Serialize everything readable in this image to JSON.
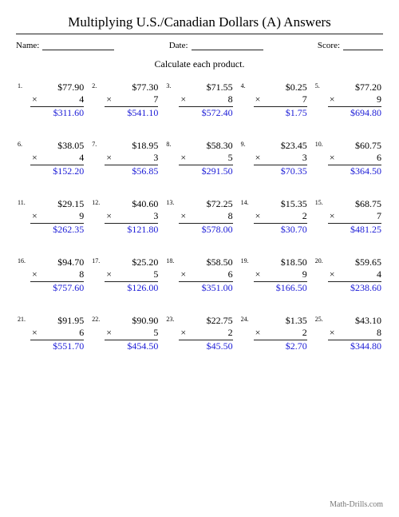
{
  "title": "Multiplying U.S./Canadian Dollars (A) Answers",
  "meta": {
    "name_label": "Name:",
    "date_label": "Date:",
    "score_label": "Score:"
  },
  "instruction": "Calculate each product.",
  "footer": "Math-Drills.com",
  "colors": {
    "answer": "#1a1ad6",
    "text": "#000000",
    "rule": "#222222",
    "footer": "#777777",
    "bg": "#ffffff"
  },
  "mult_symbol": "×",
  "problems": [
    {
      "n": "1.",
      "top": "$77.90",
      "by": "4",
      "ans": "$311.60"
    },
    {
      "n": "2.",
      "top": "$77.30",
      "by": "7",
      "ans": "$541.10"
    },
    {
      "n": "3.",
      "top": "$71.55",
      "by": "8",
      "ans": "$572.40"
    },
    {
      "n": "4.",
      "top": "$0.25",
      "by": "7",
      "ans": "$1.75"
    },
    {
      "n": "5.",
      "top": "$77.20",
      "by": "9",
      "ans": "$694.80"
    },
    {
      "n": "6.",
      "top": "$38.05",
      "by": "4",
      "ans": "$152.20"
    },
    {
      "n": "7.",
      "top": "$18.95",
      "by": "3",
      "ans": "$56.85"
    },
    {
      "n": "8.",
      "top": "$58.30",
      "by": "5",
      "ans": "$291.50"
    },
    {
      "n": "9.",
      "top": "$23.45",
      "by": "3",
      "ans": "$70.35"
    },
    {
      "n": "10.",
      "top": "$60.75",
      "by": "6",
      "ans": "$364.50"
    },
    {
      "n": "11.",
      "top": "$29.15",
      "by": "9",
      "ans": "$262.35"
    },
    {
      "n": "12.",
      "top": "$40.60",
      "by": "3",
      "ans": "$121.80"
    },
    {
      "n": "13.",
      "top": "$72.25",
      "by": "8",
      "ans": "$578.00"
    },
    {
      "n": "14.",
      "top": "$15.35",
      "by": "2",
      "ans": "$30.70"
    },
    {
      "n": "15.",
      "top": "$68.75",
      "by": "7",
      "ans": "$481.25"
    },
    {
      "n": "16.",
      "top": "$94.70",
      "by": "8",
      "ans": "$757.60"
    },
    {
      "n": "17.",
      "top": "$25.20",
      "by": "5",
      "ans": "$126.00"
    },
    {
      "n": "18.",
      "top": "$58.50",
      "by": "6",
      "ans": "$351.00"
    },
    {
      "n": "19.",
      "top": "$18.50",
      "by": "9",
      "ans": "$166.50"
    },
    {
      "n": "20.",
      "top": "$59.65",
      "by": "4",
      "ans": "$238.60"
    },
    {
      "n": "21.",
      "top": "$91.95",
      "by": "6",
      "ans": "$551.70"
    },
    {
      "n": "22.",
      "top": "$90.90",
      "by": "5",
      "ans": "$454.50"
    },
    {
      "n": "23.",
      "top": "$22.75",
      "by": "2",
      "ans": "$45.50"
    },
    {
      "n": "24.",
      "top": "$1.35",
      "by": "2",
      "ans": "$2.70"
    },
    {
      "n": "25.",
      "top": "$43.10",
      "by": "8",
      "ans": "$344.80"
    }
  ]
}
